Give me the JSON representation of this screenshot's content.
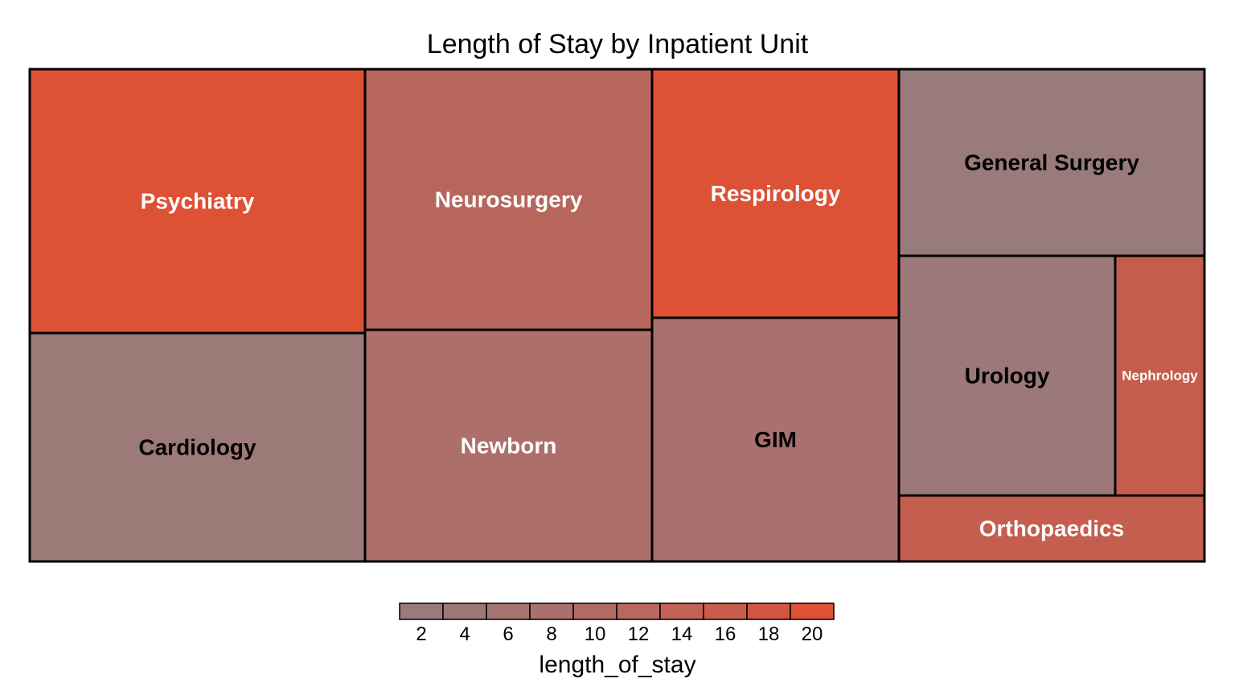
{
  "chart_data": {
    "type": "treemap",
    "title": "Length of Stay by Inpatient Unit",
    "fill_variable": "length_of_stay",
    "units": [
      {
        "name": "Psychiatry",
        "length_of_stay": 21,
        "color": "#dd5135",
        "label_color": "#ffffff"
      },
      {
        "name": "Cardiology",
        "length_of_stay": 2,
        "color": "#9b7a77",
        "label_color": "#000000"
      },
      {
        "name": "Neurosurgery",
        "length_of_stay": 9,
        "color": "#b7665c",
        "label_color": "#ffffff"
      },
      {
        "name": "Newborn",
        "length_of_stay": 7,
        "color": "#ad6f69",
        "label_color": "#ffffff"
      },
      {
        "name": "Respirology",
        "length_of_stay": 21,
        "color": "#dd5135",
        "label_color": "#ffffff"
      },
      {
        "name": "GIM",
        "length_of_stay": 6,
        "color": "#aa706d",
        "label_color": "#000000"
      },
      {
        "name": "General Surgery",
        "length_of_stay": 2,
        "color": "#997b7c",
        "label_color": "#000000"
      },
      {
        "name": "Urology",
        "length_of_stay": 3,
        "color": "#9c7878",
        "label_color": "#000000"
      },
      {
        "name": "Nephrology",
        "length_of_stay": 13,
        "color": "#c55d4d",
        "label_color": "#ffffff"
      },
      {
        "name": "Orthopaedics",
        "length_of_stay": 12,
        "color": "#c45e4e",
        "label_color": "#ffffff"
      }
    ],
    "legend": {
      "title": "length_of_stay",
      "ticks": [
        "2",
        "4",
        "6",
        "8",
        "10",
        "12",
        "14",
        "16",
        "18",
        "20"
      ],
      "colors": [
        "#997b7c",
        "#9d7776",
        "#a47471",
        "#aa706b",
        "#b16c65",
        "#b8685f",
        "#c16255",
        "#ca5c4b",
        "#d35642",
        "#dd5135"
      ],
      "position": "bottom"
    }
  }
}
